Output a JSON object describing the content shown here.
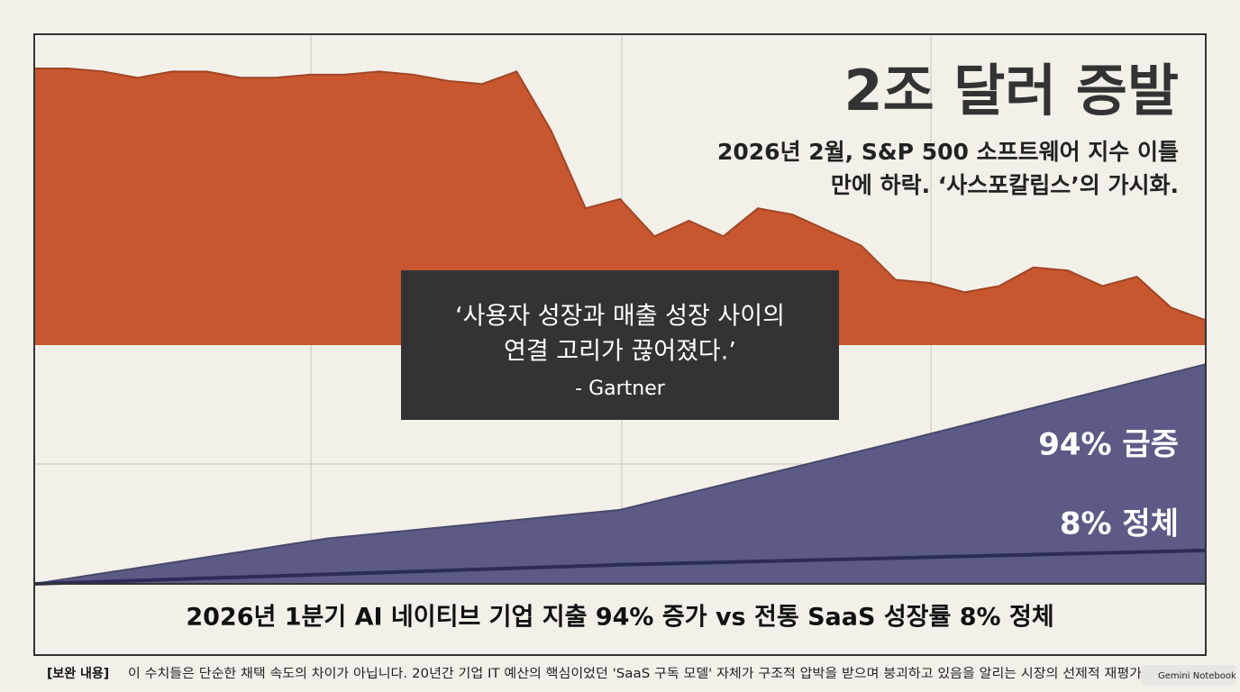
{
  "chart_data": [
    {
      "type": "area",
      "title": "2조 달러 증발",
      "subtitle": [
        "2026년 2월, S&P 500 소프트웨어 지수 이틀",
        "만에 하락. ‘사스포칼립스’의 가시화."
      ],
      "values": [
        89,
        89,
        88,
        86,
        88,
        88,
        86,
        86,
        87,
        87,
        88,
        87,
        85,
        84,
        88,
        69,
        44,
        47,
        35,
        40,
        35,
        44,
        42,
        37,
        32,
        21,
        20,
        17,
        19,
        25,
        24,
        19,
        22,
        12,
        8
      ],
      "color": "#c8572f",
      "ylim": [
        0,
        100
      ]
    },
    {
      "type": "area",
      "caption": "2026년 1분기 AI 네이티브 기업 지출 94% 증가 vs 전통 SaaS 성장률 8% 정체",
      "annotations": [
        "94% 급증",
        "8% 정체"
      ],
      "series": [
        {
          "type": "area",
          "color": "#5b5b86",
          "values": [
            0,
            19,
            31,
            61,
            92
          ]
        },
        {
          "type": "line",
          "color": "#2b2d58",
          "values": [
            0,
            4,
            8,
            11,
            14
          ]
        }
      ],
      "ylim": [
        0,
        100
      ]
    }
  ],
  "quote": {
    "lines": [
      "‘사용자 성장과 매출 성장 사이의",
      "연결 고리가 끊어졌다.’"
    ],
    "source": "- Gartner"
  },
  "footer": {
    "label": "[보완 내용]",
    "text": "이 수치들은 단순한 채택 속도의 차이가 아닙니다. 20년간 기업 IT 예산의 핵심이었던 'SaaS 구독 모델' 자체가 구조적 압박을 받으며 붕괴하고 있음을 알리는 시장의 선제적 재평가"
  },
  "badge": "Gemini Notebook"
}
